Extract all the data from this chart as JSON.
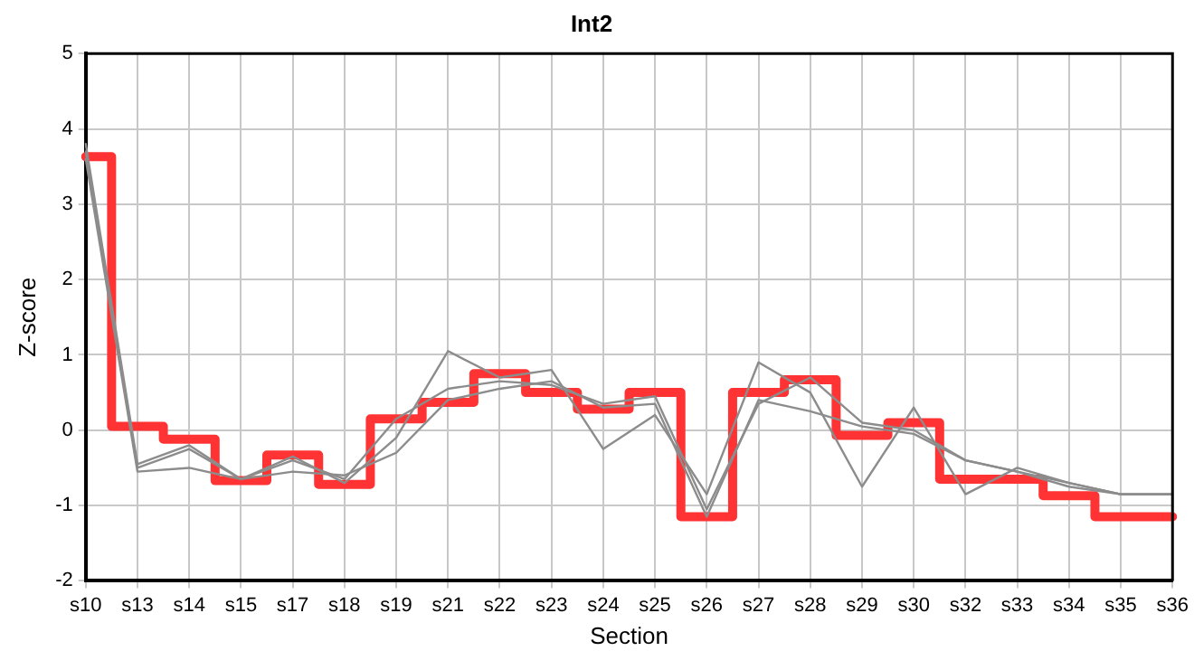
{
  "chart_data": {
    "type": "line",
    "title": "Int2",
    "xlabel": "Section",
    "ylabel": "Z-score",
    "categories": [
      "s10",
      "s13",
      "s14",
      "s15",
      "s17",
      "s18",
      "s19",
      "s21",
      "s22",
      "s23",
      "s24",
      "s25",
      "s26",
      "s27",
      "s28",
      "s29",
      "s30",
      "s32",
      "s33",
      "s34",
      "s35",
      "s36"
    ],
    "series": [
      {
        "color": "#8c8c8c",
        "values": [
          3.8,
          -0.45,
          -0.2,
          -0.65,
          -0.35,
          -0.7,
          -0.1,
          1.05,
          0.7,
          0.8,
          -0.25,
          0.2,
          -0.85,
          0.9,
          0.5,
          -0.75,
          0.3,
          -0.85,
          -0.5,
          -0.7,
          -0.85,
          -0.85
        ]
      },
      {
        "color": "#8c8c8c",
        "values": [
          3.7,
          -0.5,
          -0.25,
          -0.65,
          -0.4,
          -0.65,
          0.15,
          0.55,
          0.65,
          0.6,
          0.35,
          0.45,
          -1.05,
          0.35,
          0.7,
          0.1,
          0.0,
          -0.4,
          -0.55,
          -0.7,
          -0.85,
          -0.85
        ]
      },
      {
        "color": "#8c8c8c",
        "values": [
          3.6,
          -0.55,
          -0.5,
          -0.65,
          -0.55,
          -0.6,
          -0.3,
          0.4,
          0.55,
          0.65,
          0.3,
          0.35,
          -1.15,
          0.4,
          0.25,
          0.05,
          -0.05,
          -0.4,
          -0.55,
          -0.75,
          -0.85,
          -0.85
        ]
      },
      {
        "type": "step",
        "color": "#ff3333",
        "values": [
          3.63,
          0.05,
          -0.12,
          -0.67,
          -0.33,
          -0.72,
          0.15,
          0.37,
          0.75,
          0.5,
          0.28,
          0.5,
          -1.15,
          0.5,
          0.67,
          -0.07,
          0.1,
          -0.65,
          -0.65,
          -0.87,
          -1.15,
          -1.15
        ]
      }
    ],
    "ylim": [
      -2,
      5
    ],
    "yticks": [
      -2,
      -1,
      0,
      1,
      2,
      3,
      4,
      5
    ],
    "grid": true,
    "legend": false,
    "marker": "none"
  }
}
